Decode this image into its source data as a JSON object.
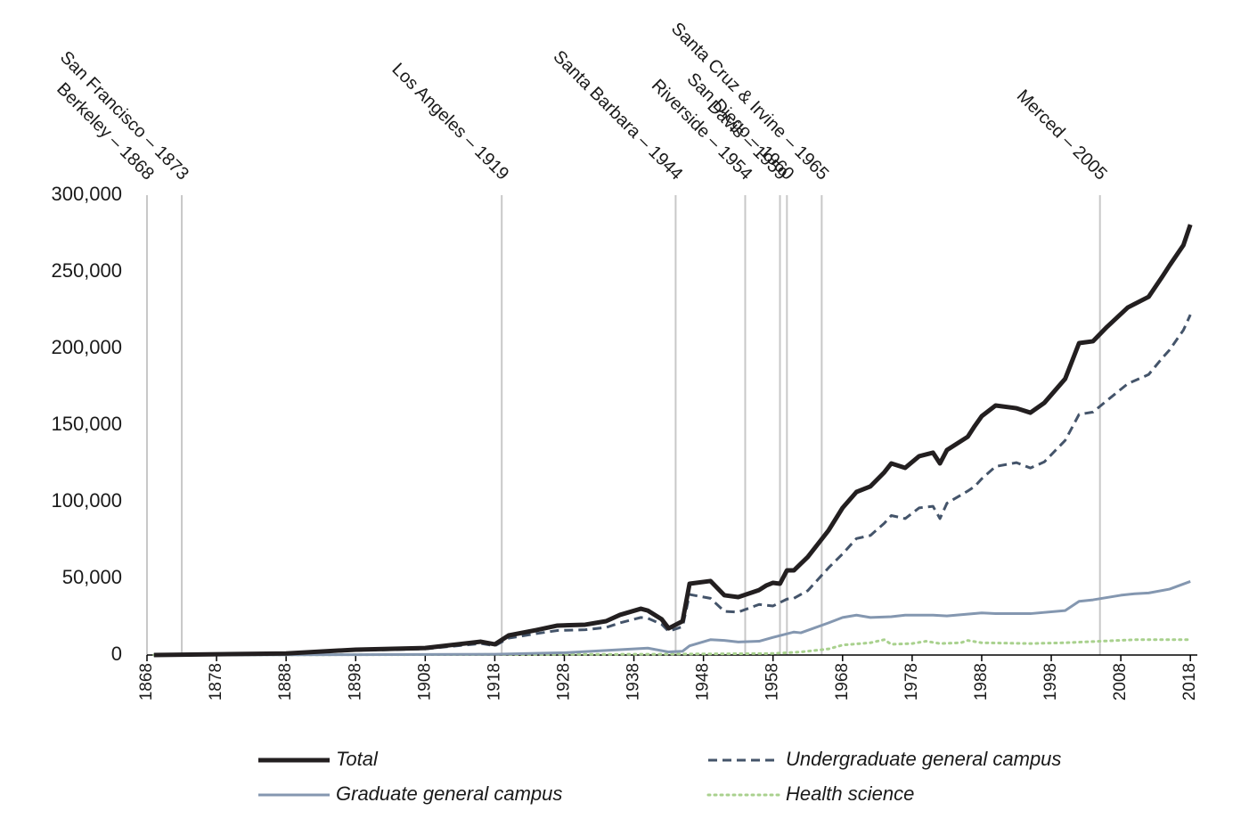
{
  "chart_data": {
    "type": "line",
    "xlim": [
      1868,
      2019
    ],
    "xticks": [
      1868,
      1878,
      1888,
      1898,
      1908,
      1918,
      1928,
      1938,
      1948,
      1958,
      1968,
      1978,
      1988,
      1998,
      2008,
      2018
    ],
    "ylim": [
      0,
      300000
    ],
    "yticks": [
      {
        "value": 0,
        "label": "0"
      },
      {
        "value": 50000,
        "label": "50,000"
      },
      {
        "value": 100000,
        "label": "100,000"
      },
      {
        "value": 150000,
        "label": "150,000"
      },
      {
        "value": 200000,
        "label": "200,000"
      },
      {
        "value": 250000,
        "label": "250,000"
      },
      {
        "value": 300000,
        "label": "300,000"
      }
    ],
    "annotations": [
      {
        "label": "Berkeley – 1868",
        "x": 1868
      },
      {
        "label": "San Francisco – 1873",
        "x": 1873
      },
      {
        "label": "Los Angeles – 1919",
        "x": 1919
      },
      {
        "label": "Santa Barbara – 1944",
        "x": 1944
      },
      {
        "label": "Riverside – 1954",
        "x": 1954
      },
      {
        "label": "Davis – 1959",
        "x": 1959
      },
      {
        "label": "San Diego – 1960",
        "x": 1960
      },
      {
        "label": "Santa Cruz & Irvine – 1965",
        "x": 1965
      },
      {
        "label": "Merced – 2005",
        "x": 2005
      }
    ],
    "series": [
      {
        "name": "Total",
        "color": "#231f20",
        "style": "solid",
        "width": 5,
        "x": [
          1869,
          1888,
          1898,
          1908,
          1916,
          1918,
          1920,
          1924,
          1927,
          1931,
          1934,
          1936,
          1939,
          1940,
          1942,
          1943,
          1945,
          1946,
          1949,
          1951,
          1953,
          1956,
          1957,
          1958,
          1959,
          1960,
          1961,
          1963,
          1966,
          1968,
          1970,
          1972,
          1974,
          1975,
          1977,
          1979,
          1981,
          1982,
          1983,
          1986,
          1987,
          1988,
          1990,
          1993,
          1995,
          1997,
          2000,
          2002,
          2004,
          2006,
          2009,
          2012,
          2014,
          2015,
          2017,
          2018
        ],
        "values": [
          0,
          1000,
          3500,
          4600,
          8700,
          7000,
          12800,
          16300,
          19200,
          19800,
          22100,
          26200,
          30200,
          29000,
          23300,
          17400,
          22100,
          46500,
          48300,
          39000,
          37800,
          42400,
          45300,
          47100,
          46500,
          55200,
          55200,
          64000,
          81400,
          96000,
          106400,
          110000,
          119200,
          125000,
          122100,
          129700,
          132000,
          125000,
          133700,
          142400,
          149400,
          155800,
          162800,
          161000,
          158100,
          164500,
          180200,
          203500,
          204700,
          214000,
          226700,
          233700,
          247100,
          254100,
          267400,
          280800
        ]
      },
      {
        "name": "Undergraduate general campus",
        "color": "#44546a",
        "style": "dashed",
        "width": 3,
        "x": [
          1869,
          1888,
          1898,
          1908,
          1916,
          1918,
          1920,
          1924,
          1927,
          1931,
          1934,
          1936,
          1939,
          1940,
          1942,
          1943,
          1945,
          1946,
          1949,
          1951,
          1953,
          1956,
          1958,
          1960,
          1961,
          1963,
          1966,
          1968,
          1970,
          1972,
          1974,
          1975,
          1977,
          1979,
          1981,
          1982,
          1983,
          1986,
          1987,
          1988,
          1990,
          1993,
          1995,
          1997,
          2000,
          2002,
          2004,
          2006,
          2009,
          2012,
          2014,
          2015,
          2017,
          2018
        ],
        "values": [
          0,
          800,
          3000,
          4000,
          7500,
          6000,
          11000,
          14000,
          16000,
          16500,
          18000,
          21000,
          24500,
          24000,
          20000,
          15500,
          18500,
          39500,
          37000,
          28500,
          28000,
          33000,
          32000,
          36500,
          37000,
          42000,
          57000,
          66000,
          76000,
          78000,
          86000,
          91000,
          89000,
          96000,
          97000,
          89000,
          99000,
          107000,
          110000,
          115000,
          123000,
          125500,
          122000,
          126000,
          140000,
          157000,
          158500,
          166000,
          177000,
          183000,
          194000,
          199000,
          212000,
          222000
        ]
      },
      {
        "name": "Graduate general campus",
        "color": "#8497b0",
        "style": "solid",
        "width": 3,
        "x": [
          1869,
          1898,
          1918,
          1928,
          1938,
          1940,
          1943,
          1945,
          1946,
          1949,
          1951,
          1953,
          1956,
          1958,
          1961,
          1962,
          1966,
          1968,
          1970,
          1972,
          1975,
          1977,
          1981,
          1983,
          1988,
          1990,
          1995,
          2000,
          2002,
          2004,
          2008,
          2010,
          2012,
          2015,
          2018
        ],
        "values": [
          0,
          200,
          500,
          1500,
          4000,
          4500,
          2000,
          2500,
          6000,
          10000,
          9500,
          8500,
          9000,
          11500,
          15000,
          14500,
          21000,
          24500,
          26000,
          24500,
          25000,
          26000,
          26000,
          25500,
          27500,
          27000,
          27000,
          29000,
          35000,
          36000,
          39000,
          40000,
          40500,
          43000,
          48000
        ]
      },
      {
        "name": "Health science",
        "color": "#a9d18e",
        "style": "dotted",
        "width": 3,
        "x": [
          1869,
          1940,
          1958,
          1962,
          1966,
          1968,
          1972,
          1974,
          1975,
          1978,
          1980,
          1982,
          1985,
          1986,
          1988,
          1995,
          2000,
          2005,
          2010,
          2018
        ],
        "values": [
          0,
          500,
          1000,
          2000,
          4000,
          6500,
          8000,
          10000,
          7000,
          7500,
          9000,
          7500,
          8000,
          9500,
          8000,
          7500,
          8000,
          9000,
          10000,
          10000
        ]
      }
    ]
  }
}
